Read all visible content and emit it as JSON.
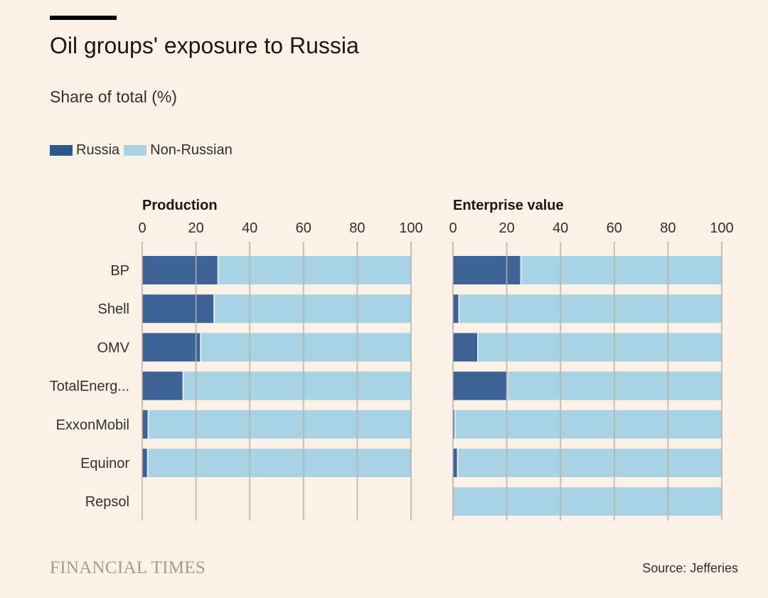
{
  "header": {
    "title": "Oil groups' exposure to Russia",
    "subtitle": "Share of total (%)"
  },
  "legend": {
    "russia_label": "Russia",
    "non_russian_label": "Non-Russian"
  },
  "colors": {
    "russia": "#2d578f",
    "non_russian": "#a8d3e5",
    "background": "#fbf1e6",
    "gridline": "#b8b0a8"
  },
  "footer": {
    "brand": "FINANCIAL TIMES",
    "source": "Source: Jefferies"
  },
  "chart_data": {
    "type": "bar",
    "orientation": "horizontal",
    "stacked": true,
    "categories": [
      "BP",
      "Shell",
      "OMV",
      "TotalEnerg...",
      "ExxonMobil",
      "Equinor",
      "Repsol"
    ],
    "panels": [
      {
        "title": "Production",
        "xlim": [
          0,
          100
        ],
        "ticks": [
          0,
          20,
          40,
          60,
          80,
          100
        ],
        "series": [
          {
            "name": "Russia",
            "values": [
              28,
              26.5,
              21.5,
              15,
              2,
              1.8,
              0
            ]
          },
          {
            "name": "Non-Russian",
            "values": [
              72,
              73.5,
              78.5,
              85,
              98,
              98.2,
              0
            ]
          }
        ]
      },
      {
        "title": "Enterprise value",
        "xlim": [
          0,
          100
        ],
        "ticks": [
          0,
          20,
          40,
          60,
          80,
          100
        ],
        "series": [
          {
            "name": "Russia",
            "values": [
              25,
              2,
              9,
              20,
              0.5,
              1.5,
              0
            ]
          },
          {
            "name": "Non-Russian",
            "values": [
              75,
              98,
              91,
              80,
              99.5,
              98.5,
              100
            ]
          }
        ]
      }
    ]
  }
}
